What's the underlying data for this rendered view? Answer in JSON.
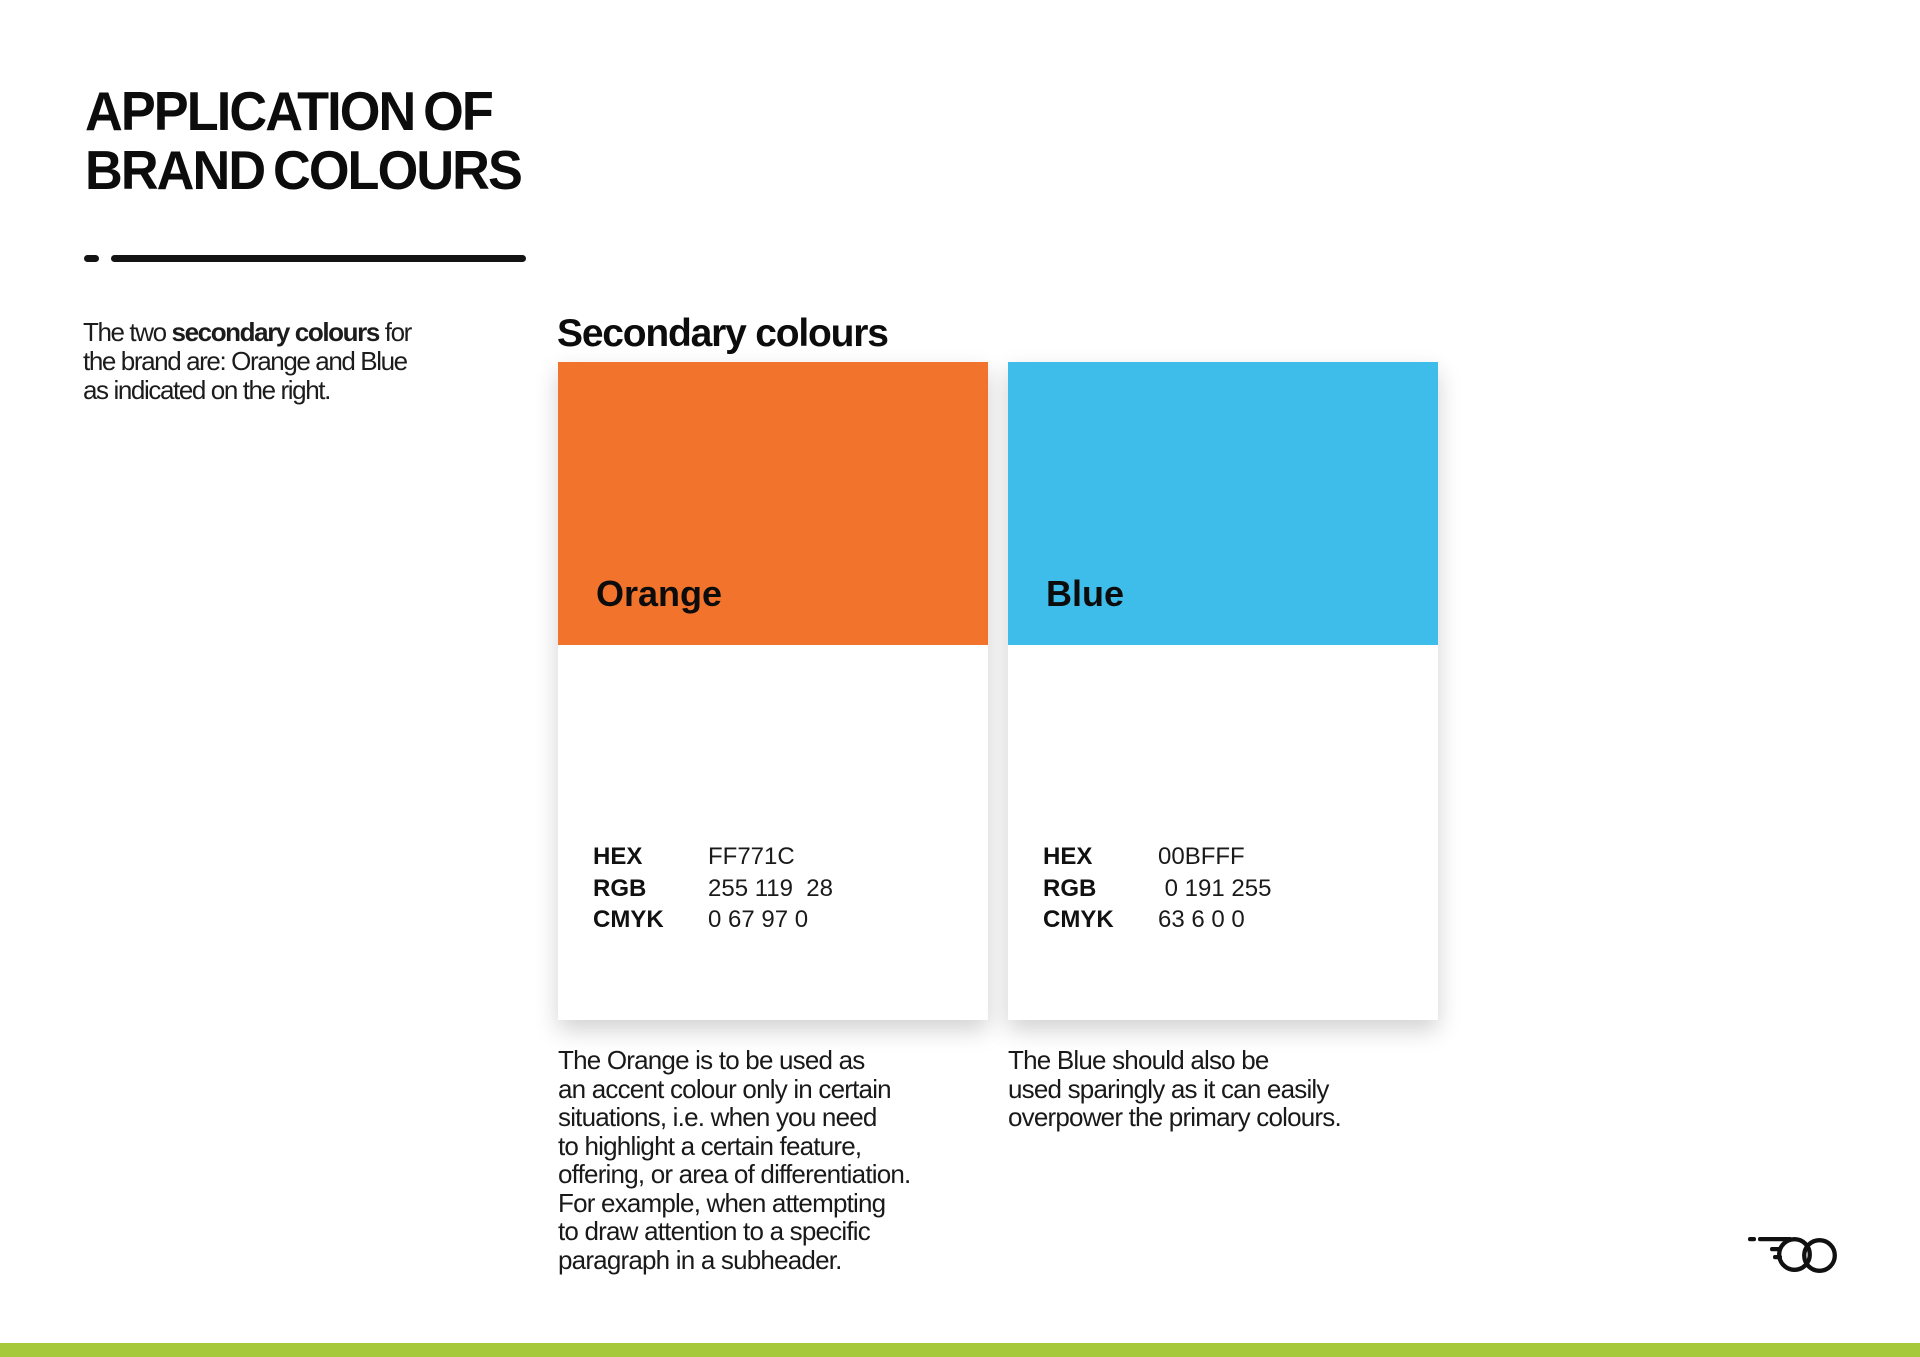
{
  "page": {
    "accent_bar_color": "#a6c93c"
  },
  "header": {
    "title_line1": "APPLICATION OF",
    "title_line2": "BRAND COLOURS"
  },
  "intro": {
    "line1_pre": "The two ",
    "line1_bold": "secondary colours",
    "line1_post": " for",
    "line2": "the brand are: Orange and Blue",
    "line3": "as indicated on the right."
  },
  "section": {
    "heading": "Secondary colours"
  },
  "cards": [
    {
      "name": "Orange",
      "swatch_color": "#f2742c",
      "specs": [
        {
          "label": "HEX",
          "value": "FF771C"
        },
        {
          "label": "RGB",
          "value": "255 119  28"
        },
        {
          "label": "CMYK",
          "value": "0 67 97 0"
        }
      ],
      "description_lines": [
        "The Orange is to be used as",
        "an accent colour only in certain",
        "situations, i.e. when you need",
        "to highlight a certain feature,",
        "offering, or area of differentiation.",
        "For example, when attempting",
        "to draw attention to a specific",
        "paragraph in a subheader."
      ]
    },
    {
      "name": "Blue",
      "swatch_color": "#3ebcea",
      "specs": [
        {
          "label": "HEX",
          "value": "00BFFF"
        },
        {
          "label": "RGB",
          "value": " 0 191 255"
        },
        {
          "label": "CMYK",
          "value": "63 6 0 0"
        }
      ],
      "description_lines": [
        "The Blue should also be",
        "used sparingly as it can easily",
        "overpower the primary colours."
      ]
    }
  ]
}
